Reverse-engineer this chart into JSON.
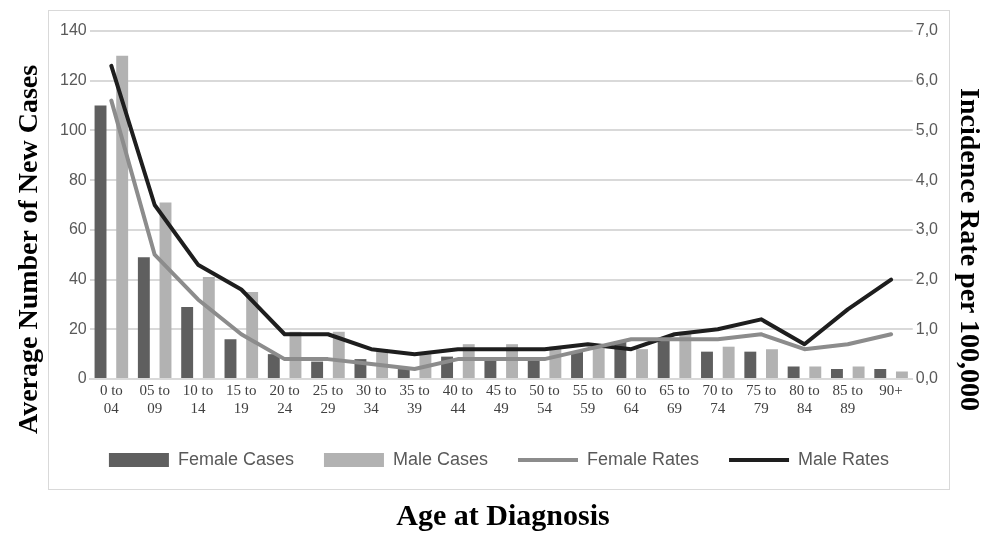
{
  "chart_data": {
    "type": "bar",
    "xlabel": "Age at Diagnosis",
    "ylabel": "Average Number of New Cases",
    "y2label": "Incidence Rate per 100,000",
    "categories": [
      "0 to 04",
      "05 to 09",
      "10 to 14",
      "15 to 19",
      "20 to 24",
      "25 to 29",
      "30 to 34",
      "35 to 39",
      "40 to 44",
      "45 to 49",
      "50 to 54",
      "55 to 59",
      "60 to 64",
      "65 to 69",
      "70 to 74",
      "75 to 79",
      "80 to 84",
      "85 to 89",
      "90+"
    ],
    "series": [
      {
        "name": "Female Cases",
        "color": "#5f5f5f",
        "values": [
          110,
          49,
          29,
          16,
          10,
          7,
          8,
          4,
          9,
          8,
          8,
          11,
          15,
          16,
          11,
          11,
          5,
          4,
          4
        ]
      },
      {
        "name": "Male Cases",
        "color": "#b2b2b2",
        "values": [
          130,
          71,
          41,
          35,
          19,
          19,
          12,
          10,
          14,
          14,
          13,
          13,
          12,
          19,
          13,
          12,
          5,
          5,
          3
        ]
      },
      {
        "name": "Female Rates",
        "type": "line",
        "axis": "y2",
        "color": "#8c8c8c",
        "values": [
          5.6,
          2.5,
          1.6,
          0.9,
          0.4,
          0.4,
          0.3,
          0.2,
          0.4,
          0.4,
          0.4,
          0.6,
          0.8,
          0.8,
          0.8,
          0.9,
          0.6,
          0.7,
          0.9
        ]
      },
      {
        "name": "Male Rates",
        "type": "line",
        "axis": "y2",
        "color": "#1e1e1e",
        "values": [
          6.3,
          3.5,
          2.3,
          1.8,
          0.9,
          0.9,
          0.6,
          0.5,
          0.6,
          0.6,
          0.6,
          0.7,
          0.6,
          0.9,
          1.0,
          1.2,
          0.7,
          1.4,
          2.0
        ]
      }
    ],
    "ylim": [
      0,
      140
    ],
    "yticks": [
      0,
      20,
      40,
      60,
      80,
      100,
      120,
      140
    ],
    "y2lim": [
      0,
      7
    ],
    "y2ticks": [
      {
        "value": 0,
        "label": "0,0"
      },
      {
        "value": 1,
        "label": "1,0"
      },
      {
        "value": 2,
        "label": "2,0"
      },
      {
        "value": 3,
        "label": "3,0"
      },
      {
        "value": 4,
        "label": "4,0"
      },
      {
        "value": 5,
        "label": "5,0"
      },
      {
        "value": 6,
        "label": "6,0"
      },
      {
        "value": 7,
        "label": "7,0"
      }
    ],
    "grid": "y",
    "legend": "bottom",
    "marker": "none",
    "line_style": "solid"
  }
}
